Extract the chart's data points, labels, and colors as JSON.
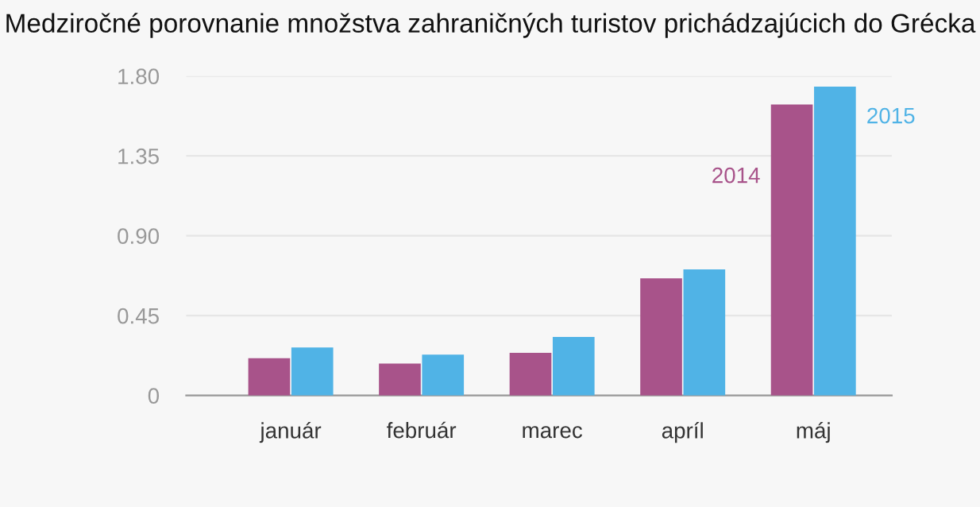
{
  "chart_data": {
    "type": "bar",
    "title": "Medziročné porovnanie množstva zahraničných turistov prichádzajúcich do Grécka",
    "categories": [
      "január",
      "február",
      "marec",
      "apríl",
      "máj"
    ],
    "series": [
      {
        "name": "2014",
        "color": "#a8538a",
        "values": [
          0.21,
          0.18,
          0.24,
          0.66,
          1.64
        ]
      },
      {
        "name": "2015",
        "color": "#50b3e6",
        "values": [
          0.27,
          0.23,
          0.33,
          0.71,
          1.74
        ]
      }
    ],
    "ylim": [
      0,
      1.8
    ],
    "yticks": [
      {
        "value": 0,
        "label": "0"
      },
      {
        "value": 0.45,
        "label": "0.45"
      },
      {
        "value": 0.9,
        "label": "0.90"
      },
      {
        "value": 1.35,
        "label": "1.35"
      },
      {
        "value": 1.8,
        "label": "1.80"
      }
    ],
    "grid": "y",
    "legend": false
  }
}
